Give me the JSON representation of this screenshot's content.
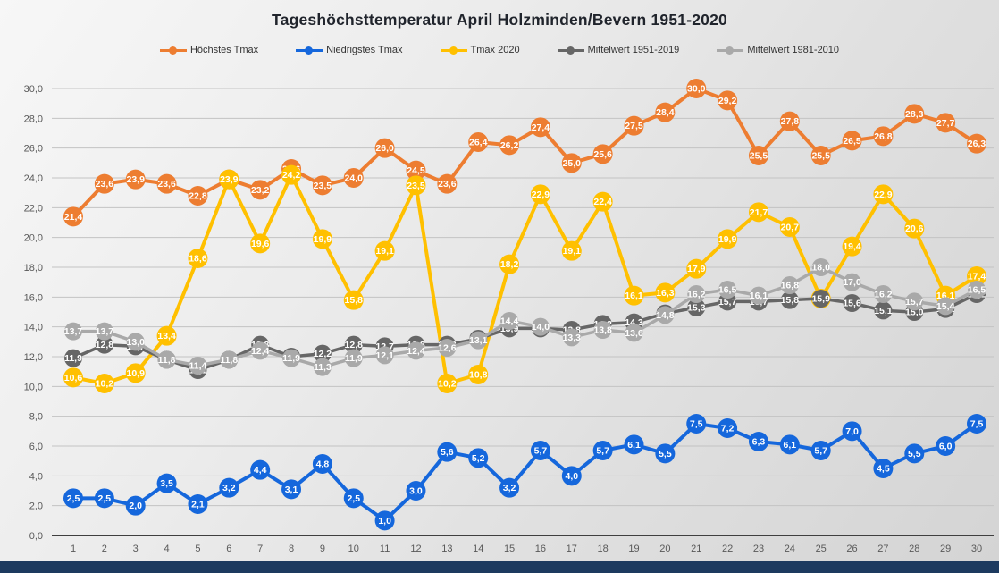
{
  "title": "Tageshöchsttemperatur April Holzminden/Bevern 1951-2020",
  "chart_data": {
    "type": "line",
    "title": "Tageshöchsttemperatur April Holzminden/Bevern 1951-2020",
    "xlabel": "",
    "ylabel": "",
    "x": [
      1,
      2,
      3,
      4,
      5,
      6,
      7,
      8,
      9,
      10,
      11,
      12,
      13,
      14,
      15,
      16,
      17,
      18,
      19,
      20,
      21,
      22,
      23,
      24,
      25,
      26,
      27,
      28,
      29,
      30
    ],
    "ylim": [
      0,
      30
    ],
    "ytick_step": 2,
    "ytick_labels": [
      "0,0",
      "2,0",
      "4,0",
      "6,0",
      "8,0",
      "10,0",
      "12,0",
      "14,0",
      "16,0",
      "18,0",
      "20,0",
      "22,0",
      "24,0",
      "26,0",
      "28,0",
      "30,0"
    ],
    "grid": true,
    "legend_position": "top",
    "decimal_separator": ",",
    "marker": "circle-with-value-label",
    "series": [
      {
        "name": "Höchstes Tmax",
        "color": "#ED7D31",
        "marker_radius": 11,
        "line_width": 4,
        "values": [
          21.4,
          23.6,
          23.9,
          23.6,
          22.8,
          23.9,
          23.2,
          24.6,
          23.5,
          24.0,
          26.0,
          24.5,
          23.6,
          26.4,
          26.2,
          27.4,
          25.0,
          25.6,
          27.5,
          28.4,
          30.0,
          29.2,
          25.5,
          27.8,
          25.5,
          26.5,
          26.8,
          28.3,
          27.7,
          26.3
        ]
      },
      {
        "name": "Niedrigstes Tmax",
        "color": "#1567DC",
        "marker_radius": 11,
        "line_width": 4,
        "values": [
          2.5,
          2.5,
          2.0,
          3.5,
          2.1,
          3.2,
          4.4,
          3.1,
          4.8,
          2.5,
          1.0,
          3.0,
          5.6,
          5.2,
          3.2,
          5.7,
          4.0,
          5.7,
          6.1,
          5.5,
          7.5,
          7.2,
          6.3,
          6.1,
          5.7,
          7.0,
          4.5,
          5.5,
          6.0,
          7.5
        ]
      },
      {
        "name": "Tmax 2020",
        "color": "#FFC000",
        "marker_radius": 11,
        "line_width": 4,
        "values": [
          10.6,
          10.2,
          10.9,
          13.4,
          18.6,
          23.9,
          19.6,
          24.2,
          19.9,
          15.8,
          19.1,
          23.5,
          10.2,
          10.8,
          18.2,
          22.9,
          19.1,
          22.4,
          16.1,
          16.3,
          17.9,
          19.9,
          21.7,
          20.7,
          15.9,
          19.4,
          22.9,
          20.6,
          16.1,
          17.4
        ]
      },
      {
        "name": "Mittelwert 1951-2019",
        "color": "#666666",
        "marker_radius": 10,
        "line_width": 3.5,
        "values": [
          11.9,
          12.8,
          12.7,
          11.8,
          11.1,
          11.8,
          12.8,
          12.0,
          12.2,
          12.8,
          12.7,
          12.8,
          12.8,
          13.2,
          13.9,
          13.9,
          13.8,
          14.2,
          14.3,
          14.9,
          15.3,
          15.7,
          15.7,
          15.8,
          15.9,
          15.6,
          15.1,
          15.0,
          15.2,
          16.2
        ]
      },
      {
        "name": "Mittelwert 1981-2010",
        "color": "#A9A9A9",
        "marker_radius": 10,
        "line_width": 3.5,
        "values": [
          13.7,
          13.7,
          13.0,
          11.8,
          11.4,
          11.8,
          12.4,
          11.9,
          11.3,
          11.9,
          12.1,
          12.4,
          12.6,
          13.1,
          14.4,
          14.0,
          13.3,
          13.8,
          13.6,
          14.8,
          16.2,
          16.5,
          16.1,
          16.8,
          18.0,
          17.0,
          16.2,
          15.7,
          15.4,
          16.5
        ]
      }
    ]
  },
  "style": {
    "gridline_color": "#c3c3c3",
    "axis_line_color": "#3f3f3f",
    "axis_text_color": "#595959",
    "data_label_color": "#ffffff",
    "title_color": "#20242c",
    "bottom_bar_color": "#1d3a5f"
  }
}
